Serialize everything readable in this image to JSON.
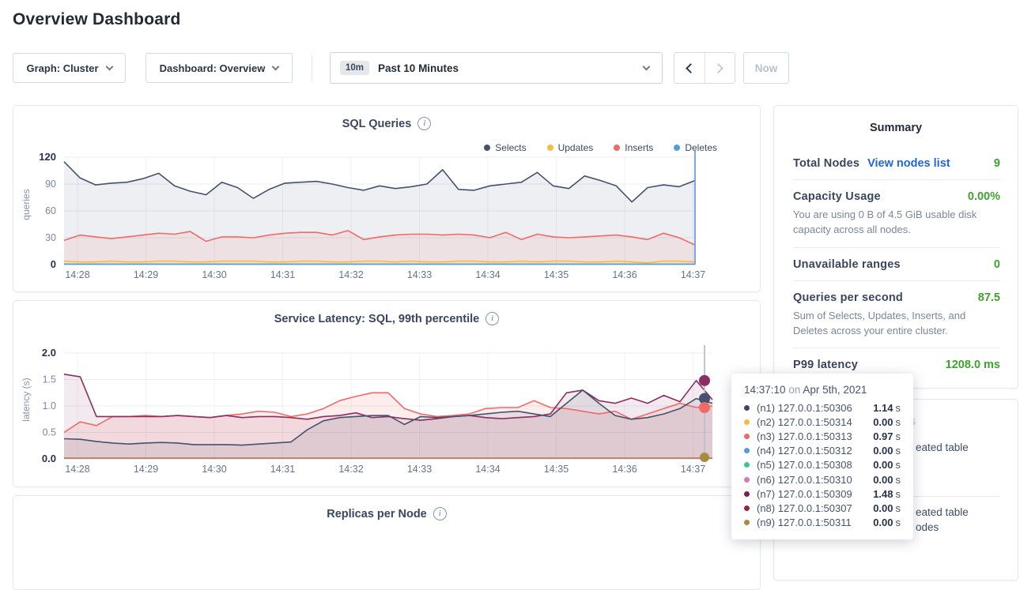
{
  "page": {
    "title": "Overview Dashboard"
  },
  "controls": {
    "graph_dropdown": "Graph: Cluster",
    "dashboard_dropdown": "Dashboard: Overview",
    "time_badge": "10m",
    "time_label": "Past 10 Minutes",
    "now_label": "Now"
  },
  "summary": {
    "title": "Summary",
    "rows": [
      {
        "label": "Total Nodes",
        "link": "View nodes list",
        "value": "9"
      },
      {
        "label": "Capacity Usage",
        "value": "0.00%",
        "desc": "You are using 0 B of 4.5 GiB usable disk capacity across all nodes."
      },
      {
        "label": "Unavailable ranges",
        "value": "0"
      },
      {
        "label": "Queries per second",
        "value": "87.5",
        "desc": "Sum of Selects, Updates, Inserts, and Deletes across your entire cluster."
      },
      {
        "label": "P99 latency",
        "value": "1208.0 ms"
      }
    ]
  },
  "events": {
    "title": "Events",
    "fragments": [
      "eated table",
      "eated table",
      "odes"
    ]
  },
  "tooltip": {
    "time": "14:37:10",
    "on": "on",
    "date": "Apr 5th, 2021",
    "rows": [
      {
        "color": "#394a63",
        "label": "(n1) 127.0.0.1:50306",
        "value": "1.14",
        "unit": "s"
      },
      {
        "color": "#f2bb43",
        "label": "(n2) 127.0.0.1:50314",
        "value": "0.00",
        "unit": "s"
      },
      {
        "color": "#ef6769",
        "label": "(n3) 127.0.0.1:50313",
        "value": "0.97",
        "unit": "s"
      },
      {
        "color": "#4d9fd6",
        "label": "(n4) 127.0.0.1:50312",
        "value": "0.00",
        "unit": "s"
      },
      {
        "color": "#3fc78a",
        "label": "(n5) 127.0.0.1:50308",
        "value": "0.00",
        "unit": "s"
      },
      {
        "color": "#d678b8",
        "label": "(n6) 127.0.0.1:50310",
        "value": "0.00",
        "unit": "s"
      },
      {
        "color": "#772053",
        "label": "(n7) 127.0.0.1:50309",
        "value": "1.48",
        "unit": "s"
      },
      {
        "color": "#93293d",
        "label": "(n8) 127.0.0.1:50307",
        "value": "0.00",
        "unit": "s"
      },
      {
        "color": "#a98a3e",
        "label": "(n9) 127.0.0.1:50311",
        "value": "0.00",
        "unit": "s"
      }
    ]
  },
  "chart_data": [
    {
      "type": "line",
      "title": "SQL Queries",
      "ylabel": "queries",
      "ylim": [
        0,
        120
      ],
      "yticks": [
        0,
        30,
        60,
        90,
        120
      ],
      "yticklabels": [
        "0",
        "30",
        "60",
        "90",
        "120"
      ],
      "xticks": [
        "14:28",
        "14:29",
        "14:30",
        "14:31",
        "14:32",
        "14:33",
        "14:34",
        "14:35",
        "14:36",
        "14:37"
      ],
      "legend": [
        {
          "name": "Selects",
          "color": "#45526e"
        },
        {
          "name": "Updates",
          "color": "#f5bd3f"
        },
        {
          "name": "Inserts",
          "color": "#ef6b66"
        },
        {
          "name": "Deletes",
          "color": "#4d9fd6"
        }
      ],
      "series": [
        {
          "name": "Selects",
          "color": "#45526e",
          "fill": "rgba(69,82,110,0.09)",
          "values": [
            115,
            97,
            89,
            91,
            92,
            96,
            102,
            88,
            82,
            78,
            92,
            86,
            74,
            84,
            91,
            92,
            93,
            90,
            86,
            83,
            88,
            85,
            87,
            90,
            106,
            84,
            83,
            88,
            90,
            92,
            103,
            88,
            85,
            99,
            94,
            88,
            70,
            86,
            89,
            87,
            94
          ]
        },
        {
          "name": "Inserts",
          "color": "#ef6b66",
          "fill": "rgba(239,107,102,0.10)",
          "values": [
            27,
            33,
            31,
            29,
            31,
            33,
            35,
            34,
            37,
            26,
            31,
            31,
            30,
            33,
            35,
            36,
            36,
            33,
            38,
            28,
            31,
            33,
            34,
            34,
            33,
            34,
            33,
            30,
            36,
            28,
            34,
            31,
            30,
            31,
            32,
            33,
            31,
            28,
            35,
            30,
            22
          ]
        },
        {
          "name": "Updates",
          "color": "#f5bd3f",
          "fill": "rgba(245,189,63,0.14)",
          "values": [
            4,
            3,
            3,
            4,
            3,
            3,
            4,
            4,
            3,
            3,
            4,
            4,
            4,
            3,
            3,
            4,
            4,
            3,
            3,
            4,
            4,
            3,
            4,
            3,
            3,
            4,
            4,
            3,
            3,
            4,
            3,
            4,
            4,
            3,
            3,
            4,
            3,
            2,
            4,
            4,
            3
          ]
        },
        {
          "name": "Deletes",
          "color": "#4d9fd6",
          "fill": "none",
          "values": [
            0.5,
            0.5,
            0.5,
            0.5,
            0.5,
            0.5,
            0.5,
            0.5,
            0.5,
            0.5,
            0.5,
            0.5,
            0.5,
            0.5,
            0.5,
            0.5,
            0.5,
            0.5,
            0.5,
            0.5,
            0.5,
            0.5,
            0.5,
            0.5,
            0.5,
            0.5,
            0.5,
            0.5,
            0.5,
            0.5,
            0.5,
            0.5,
            0.5,
            0.5,
            0.5,
            0.5,
            0.5,
            0.5,
            0.5,
            0.5,
            0.5
          ]
        }
      ],
      "hover": {
        "color": "#6d9ee8",
        "dots": []
      }
    },
    {
      "type": "line",
      "title": "Service Latency: SQL, 99th percentile",
      "ylabel": "latency (s)",
      "ylim": [
        0,
        2
      ],
      "yticks": [
        0,
        0.5,
        1.0,
        1.5,
        2.0
      ],
      "yticklabels": [
        "0.0",
        "0.5",
        "1.0",
        "1.5",
        "2.0"
      ],
      "xticks": [
        "14:28",
        "14:29",
        "14:30",
        "14:31",
        "14:32",
        "14:33",
        "14:34",
        "14:35",
        "14:36",
        "14:37"
      ],
      "legend": [],
      "series": [
        {
          "name": "n3",
          "color": "#ef6b66",
          "fill": "rgba(239,107,102,0.12)",
          "values": [
            0.5,
            0.7,
            0.63,
            0.8,
            0.8,
            0.82,
            0.8,
            0.82,
            0.8,
            0.78,
            0.82,
            0.85,
            0.9,
            0.88,
            0.8,
            0.85,
            0.95,
            1.1,
            1.18,
            1.25,
            1.25,
            0.95,
            0.85,
            0.8,
            0.82,
            0.85,
            0.95,
            0.97,
            0.97,
            1.1,
            0.97,
            0.95,
            0.9,
            0.85,
            0.9,
            0.75,
            0.85,
            0.95,
            1.05,
            0.97,
            1.0
          ]
        },
        {
          "name": "n7",
          "color": "#8b2e62",
          "fill": "rgba(139,46,98,0.10)",
          "values": [
            1.6,
            1.55,
            0.8,
            0.8,
            0.8,
            0.8,
            0.8,
            0.82,
            0.8,
            0.78,
            0.82,
            0.78,
            0.8,
            0.8,
            0.78,
            0.75,
            0.8,
            0.82,
            0.87,
            0.78,
            0.8,
            0.76,
            0.73,
            0.76,
            0.8,
            0.82,
            0.78,
            0.76,
            0.78,
            0.8,
            0.85,
            1.25,
            1.3,
            1.1,
            1.05,
            1.15,
            1.05,
            1.2,
            1.08,
            1.48,
            1.12
          ]
        },
        {
          "name": "n1",
          "color": "#45526e",
          "fill": "rgba(69,82,110,0.10)",
          "values": [
            0.38,
            0.37,
            0.33,
            0.3,
            0.28,
            0.3,
            0.31,
            0.3,
            0.27,
            0.27,
            0.27,
            0.26,
            0.28,
            0.3,
            0.32,
            0.55,
            0.72,
            0.78,
            0.8,
            0.82,
            0.82,
            0.65,
            0.8,
            0.78,
            0.8,
            0.82,
            0.85,
            0.88,
            0.9,
            0.85,
            0.8,
            1.05,
            1.3,
            1.05,
            0.82,
            0.75,
            0.78,
            0.85,
            0.95,
            1.14,
            1.05
          ]
        },
        {
          "name": "zero-baseline",
          "color": "#b5724d",
          "fill": "none",
          "values": [
            0.015,
            0.015,
            0.015,
            0.015,
            0.015,
            0.015,
            0.015,
            0.015,
            0.015,
            0.015,
            0.015,
            0.015,
            0.015,
            0.015,
            0.015,
            0.015,
            0.015,
            0.015,
            0.015,
            0.015,
            0.015,
            0.015,
            0.015,
            0.015,
            0.015,
            0.015,
            0.015,
            0.015,
            0.015,
            0.015,
            0.015,
            0.015,
            0.015,
            0.015,
            0.015,
            0.015,
            0.015,
            0.015,
            0.015,
            0.015,
            0.015
          ]
        }
      ],
      "hover": {
        "color": "#b9c0ca",
        "dots": [
          {
            "color": "#8b2e62",
            "value": 1.48,
            "r": 7
          },
          {
            "color": "#45526e",
            "value": 1.14,
            "r": 7
          },
          {
            "color": "#ef6b66",
            "value": 0.97,
            "r": 7
          },
          {
            "color": "#a98a3e",
            "value": 0.03,
            "r": 6
          }
        ]
      }
    },
    {
      "type": "line",
      "title": "Replicas per Node"
    }
  ]
}
